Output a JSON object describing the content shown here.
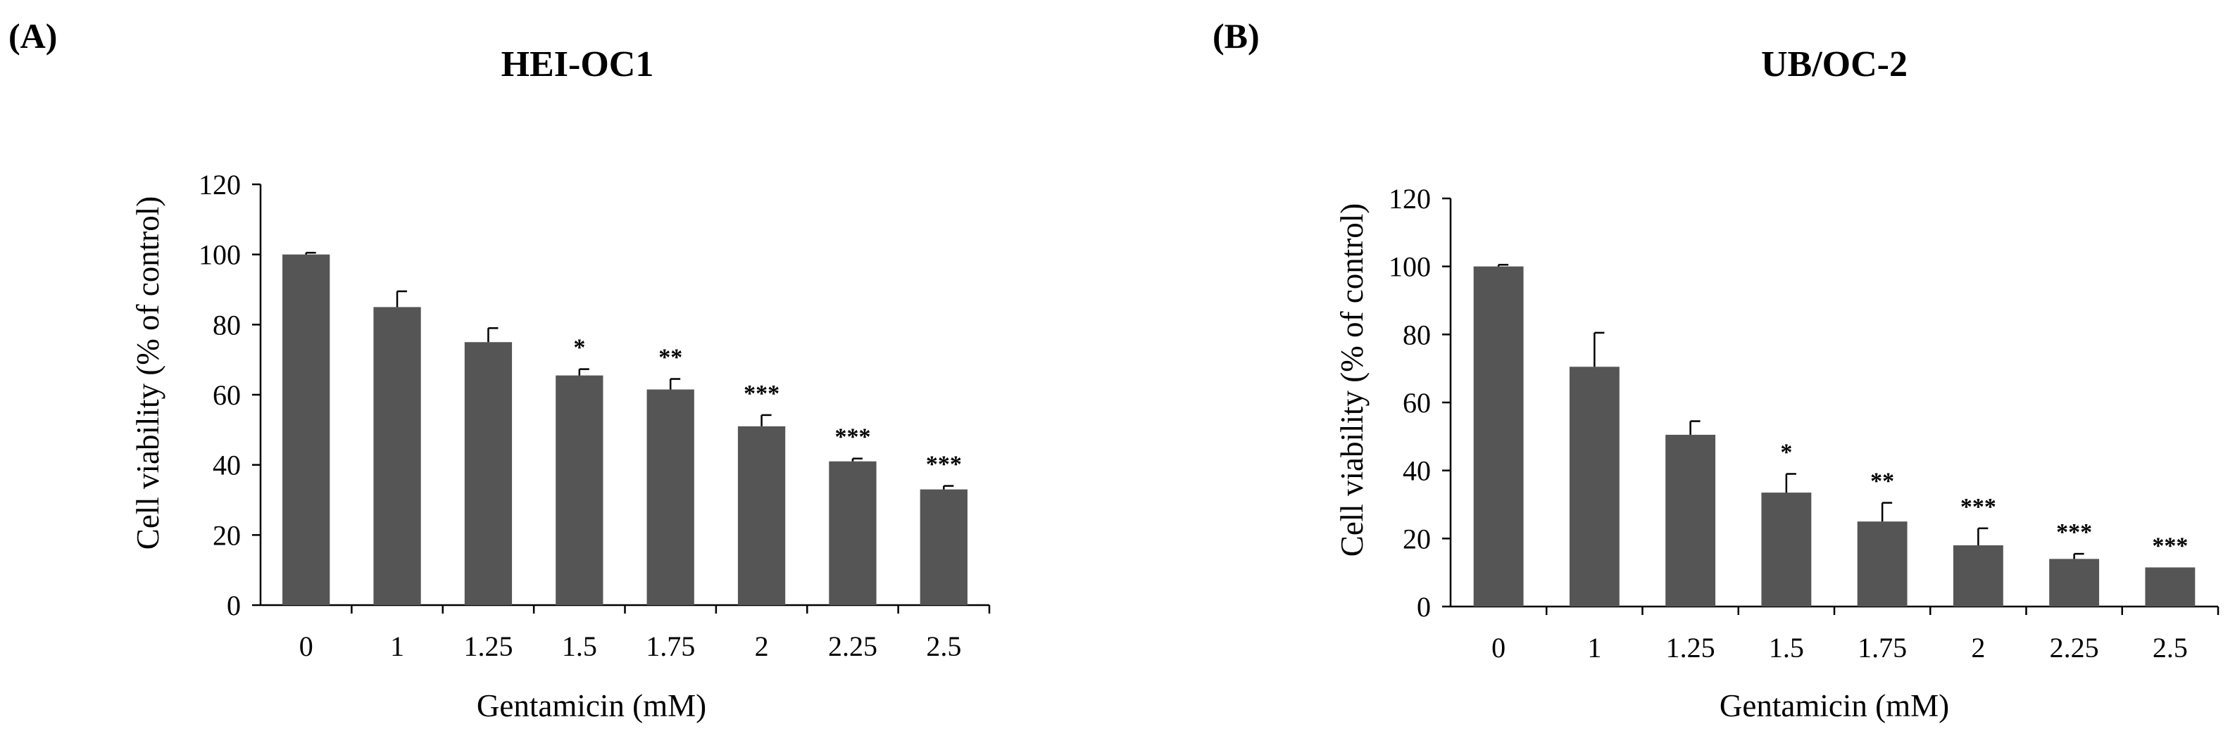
{
  "chart_data": [
    {
      "type": "bar",
      "panel_label": "(A)",
      "title": "HEI-OC1",
      "xlabel": "Gentamicin  (mM)",
      "ylabel": "Cell viability (% of control)",
      "categories": [
        "0",
        "1",
        "1.25",
        "1.5",
        "1.75",
        "2",
        "2.25",
        "2.5"
      ],
      "values": [
        100,
        85,
        75,
        65.5,
        61.5,
        51,
        41,
        33
      ],
      "error": [
        0.5,
        4.5,
        4,
        1.8,
        3,
        3.2,
        0.8,
        1
      ],
      "significance": [
        "",
        "",
        "",
        "*",
        "**",
        "***",
        "***",
        "***"
      ],
      "ylim": [
        0,
        120
      ],
      "yticks": [
        "0",
        "20",
        "40",
        "60",
        "80",
        "100",
        "120"
      ],
      "bar_color": "#555555",
      "grid": false
    },
    {
      "type": "bar",
      "panel_label": "(B)",
      "title": "UB/OC-2",
      "xlabel": "Gentamicin  (mM)",
      "ylabel": "Cell viability (% of control)",
      "categories": [
        "0",
        "1",
        "1.25",
        "1.5",
        "1.75",
        "2",
        "2.25",
        "2.5"
      ],
      "values": [
        100,
        70.5,
        50.5,
        33.5,
        25,
        18,
        14,
        11.5
      ],
      "error": [
        0.5,
        10,
        4,
        5.5,
        5.5,
        5,
        1.5,
        0
      ],
      "significance": [
        "",
        "",
        "",
        "*",
        "**",
        "***",
        "***",
        "***"
      ],
      "ylim": [
        0,
        120
      ],
      "yticks": [
        "0",
        "20",
        "40",
        "60",
        "80",
        "100",
        "120"
      ],
      "bar_color": "#555555",
      "grid": false
    }
  ]
}
